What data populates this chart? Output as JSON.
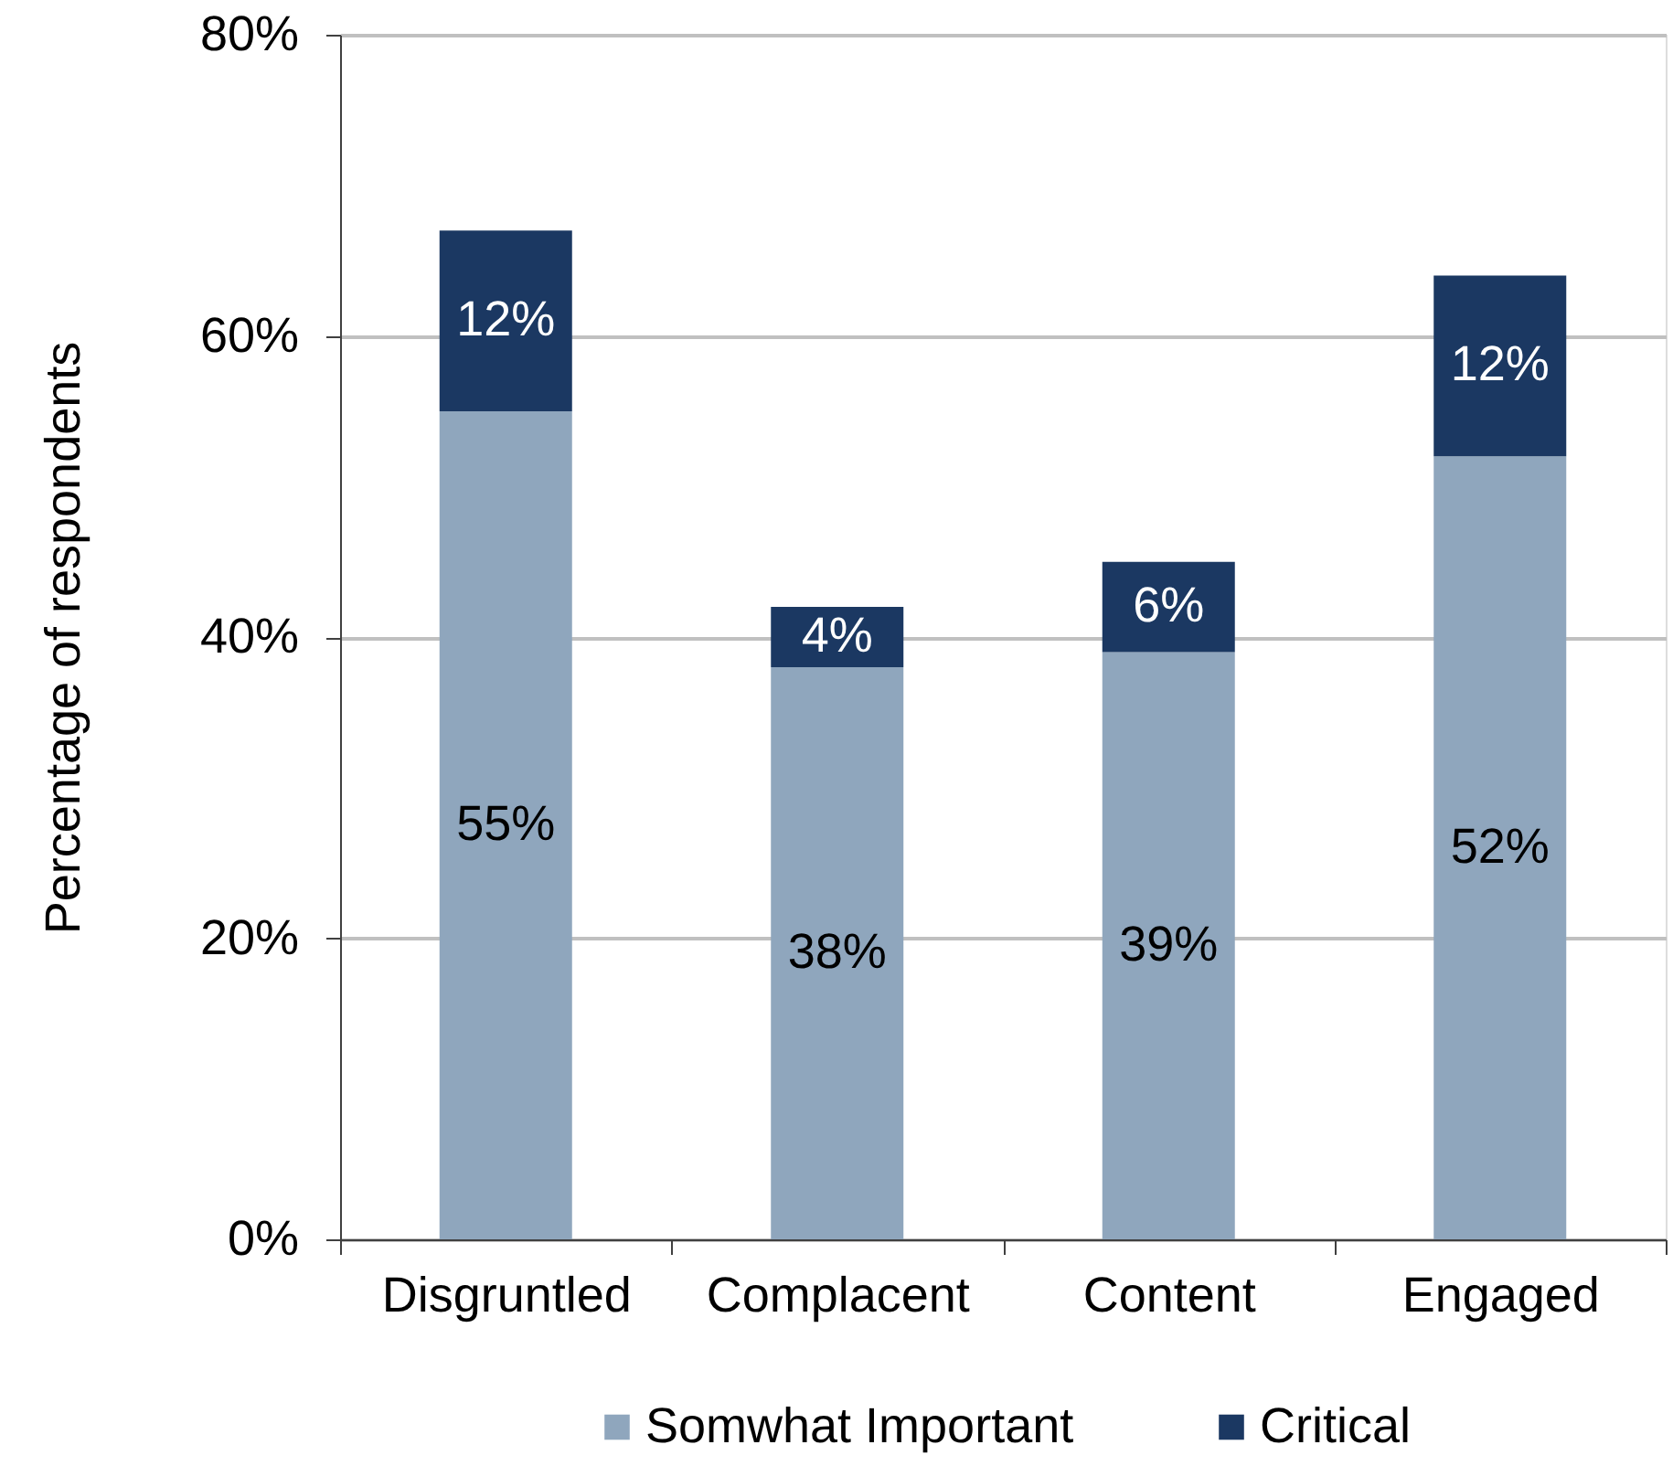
{
  "chart_data": {
    "type": "bar",
    "stacked": true,
    "ylabel": "Percentage of respondents",
    "categories": [
      "Disgruntled",
      "Complacent",
      "Content",
      "Engaged"
    ],
    "series": [
      {
        "name": "Somwhat Important",
        "color": "#8fa6bd",
        "values": [
          55,
          38,
          39,
          52
        ],
        "value_labels": [
          "55%",
          "38%",
          "39%",
          "52%"
        ]
      },
      {
        "name": "Critical",
        "color": "#1b3862",
        "values": [
          12,
          4,
          6,
          12
        ],
        "value_labels": [
          "12%",
          "4%",
          "6%",
          "12%"
        ]
      }
    ],
    "ylim": [
      0,
      80
    ],
    "yticks": [
      {
        "value": 0,
        "label": "0%"
      },
      {
        "value": 20,
        "label": "20%"
      },
      {
        "value": 40,
        "label": "40%"
      },
      {
        "value": 60,
        "label": "60%"
      },
      {
        "value": 80,
        "label": "80%"
      }
    ],
    "grid": "y",
    "legend": "bottom"
  }
}
